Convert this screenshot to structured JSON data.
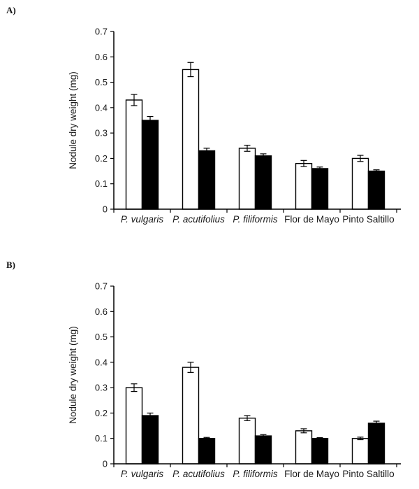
{
  "panels": [
    {
      "label": "A)"
    },
    {
      "label": "B)"
    }
  ],
  "colors": {
    "axis": "#000000",
    "open_bar_fill": "#ffffff",
    "filled_bar_fill": "#000000",
    "bar_stroke": "#000000"
  },
  "chart_data": [
    {
      "type": "bar",
      "panel": "A",
      "title": "",
      "xlabel": "",
      "ylabel": "Nodule dry weight (mg)",
      "ylim": [
        0,
        0.7
      ],
      "yticks": [
        0,
        0.1,
        0.2,
        0.3,
        0.4,
        0.5,
        0.6,
        0.7
      ],
      "ytick_labels": [
        "0",
        "0.1",
        "0.2",
        "0.3",
        "0.4",
        "0.5",
        "0.6",
        "0.7"
      ],
      "grid": false,
      "legend": "none",
      "categories": [
        "P. vulgaris",
        "P. acutifolius",
        "P. filiformis",
        "Flor de Mayo",
        "Pinto Saltillo"
      ],
      "categories_italic": [
        true,
        true,
        true,
        false,
        false
      ],
      "error_bars": true,
      "series": [
        {
          "name": "open-bars",
          "fill": "#ffffff",
          "values": [
            0.43,
            0.55,
            0.24,
            0.18,
            0.2
          ],
          "errors": [
            0.022,
            0.028,
            0.012,
            0.012,
            0.012
          ]
        },
        {
          "name": "filled-bars",
          "fill": "#000000",
          "values": [
            0.35,
            0.23,
            0.21,
            0.16,
            0.15
          ],
          "errors": [
            0.015,
            0.01,
            0.008,
            0.006,
            0.005
          ]
        }
      ]
    },
    {
      "type": "bar",
      "panel": "B",
      "title": "",
      "xlabel": "",
      "ylabel": "Nodule dry weight (mg)",
      "ylim": [
        0,
        0.7
      ],
      "yticks": [
        0,
        0.1,
        0.2,
        0.3,
        0.4,
        0.5,
        0.6,
        0.7
      ],
      "ytick_labels": [
        "0",
        "0.1",
        "0.2",
        "0.3",
        "0.4",
        "0.5",
        "0.6",
        "0.7"
      ],
      "grid": false,
      "legend": "none",
      "categories": [
        "P. vulgaris",
        "P. acutifolius",
        "P. filiformis",
        "Flor de Mayo",
        "Pinto Saltillo"
      ],
      "categories_italic": [
        true,
        true,
        true,
        false,
        false
      ],
      "error_bars": true,
      "series": [
        {
          "name": "open-bars",
          "fill": "#ffffff",
          "values": [
            0.3,
            0.38,
            0.18,
            0.13,
            0.1
          ],
          "errors": [
            0.015,
            0.02,
            0.01,
            0.008,
            0.005
          ]
        },
        {
          "name": "filled-bars",
          "fill": "#000000",
          "values": [
            0.19,
            0.1,
            0.11,
            0.1,
            0.16
          ],
          "errors": [
            0.01,
            0.004,
            0.005,
            0.003,
            0.008
          ]
        }
      ]
    }
  ]
}
